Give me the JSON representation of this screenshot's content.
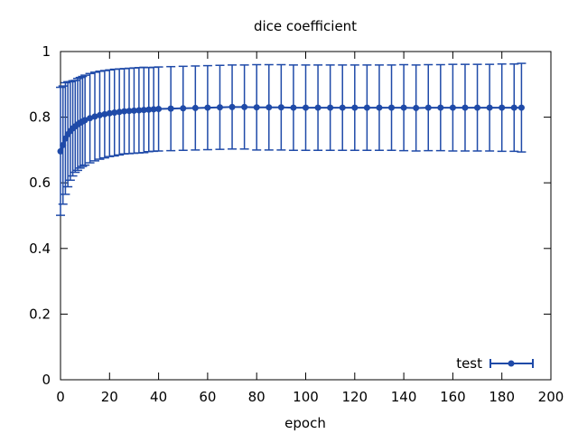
{
  "chart_data": {
    "type": "line",
    "title": "dice coefficient",
    "xlabel": "epoch",
    "ylabel": "",
    "xlim": [
      0,
      200
    ],
    "ylim": [
      0,
      1
    ],
    "x_ticks": [
      0,
      20,
      40,
      60,
      80,
      100,
      120,
      140,
      160,
      180,
      200
    ],
    "y_ticks": [
      0,
      0.2,
      0.4,
      0.6,
      0.8,
      1
    ],
    "y_tick_labels": [
      "0",
      "0.2",
      "0.4",
      "0.6",
      "0.8",
      "1"
    ],
    "grid": false,
    "legend_position": "bottom-right",
    "error_bars": true,
    "series": [
      {
        "name": "test",
        "color": "#1f4aa8",
        "x": [
          0,
          1,
          2,
          3,
          4,
          5,
          6,
          7,
          8,
          9,
          10,
          12,
          14,
          16,
          18,
          20,
          22,
          24,
          26,
          28,
          30,
          32,
          34,
          36,
          38,
          40,
          45,
          50,
          55,
          60,
          65,
          70,
          75,
          80,
          85,
          90,
          95,
          100,
          105,
          110,
          115,
          120,
          125,
          130,
          135,
          140,
          145,
          150,
          155,
          160,
          165,
          170,
          175,
          180,
          185,
          188
        ],
        "y": [
          0.696,
          0.715,
          0.735,
          0.748,
          0.758,
          0.766,
          0.772,
          0.778,
          0.783,
          0.787,
          0.791,
          0.797,
          0.802,
          0.806,
          0.809,
          0.812,
          0.814,
          0.816,
          0.818,
          0.819,
          0.82,
          0.821,
          0.822,
          0.823,
          0.824,
          0.825,
          0.826,
          0.827,
          0.828,
          0.829,
          0.83,
          0.831,
          0.831,
          0.83,
          0.83,
          0.83,
          0.829,
          0.829,
          0.829,
          0.829,
          0.829,
          0.829,
          0.829,
          0.829,
          0.829,
          0.829,
          0.828,
          0.829,
          0.829,
          0.829,
          0.829,
          0.829,
          0.829,
          0.829,
          0.829,
          0.829
        ],
        "err": [
          0.195,
          0.18,
          0.17,
          0.16,
          0.15,
          0.145,
          0.14,
          0.14,
          0.138,
          0.137,
          0.137,
          0.136,
          0.135,
          0.134,
          0.133,
          0.132,
          0.132,
          0.131,
          0.13,
          0.13,
          0.13,
          0.13,
          0.13,
          0.128,
          0.128,
          0.128,
          0.128,
          0.128,
          0.128,
          0.128,
          0.128,
          0.128,
          0.128,
          0.13,
          0.13,
          0.13,
          0.13,
          0.13,
          0.13,
          0.13,
          0.13,
          0.13,
          0.13,
          0.13,
          0.13,
          0.131,
          0.131,
          0.131,
          0.131,
          0.132,
          0.132,
          0.132,
          0.132,
          0.133,
          0.133,
          0.135
        ]
      }
    ]
  }
}
